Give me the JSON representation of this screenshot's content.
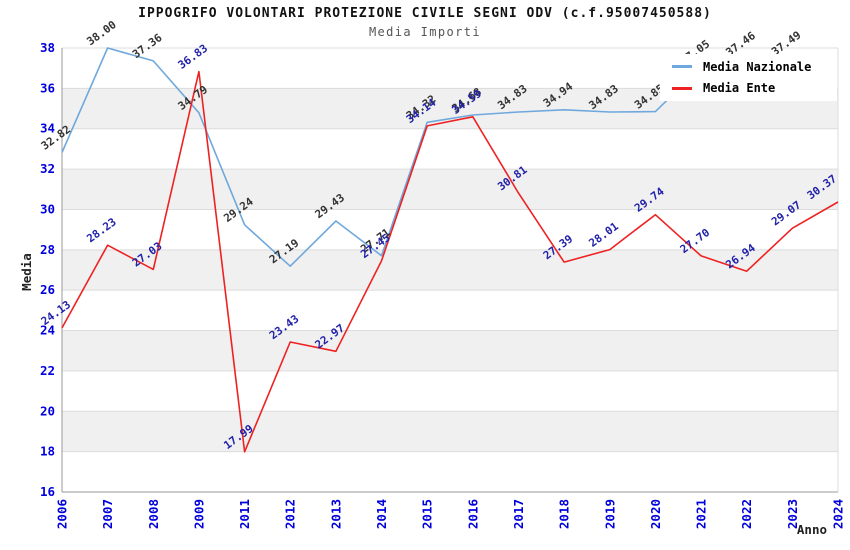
{
  "chart_data": {
    "type": "line",
    "title": "IPPOGRIFO VOLONTARI PROTEZIONE CIVILE SEGNI ODV (c.f.95007450588)",
    "subtitle": "Media Importi",
    "xlabel": "Anno",
    "ylabel": "Media",
    "x": [
      "2006",
      "2007",
      "2008",
      "2009",
      "2011",
      "2012",
      "2013",
      "2014",
      "2015",
      "2016",
      "2017",
      "2018",
      "2019",
      "2020",
      "2021",
      "2022",
      "2023",
      "2024"
    ],
    "series": [
      {
        "name": "Media Nazionale",
        "color": "#6FA8DC",
        "label_color": "#333333",
        "values": [
          32.82,
          38.0,
          37.36,
          34.79,
          29.24,
          27.19,
          29.43,
          27.71,
          34.32,
          34.68,
          34.83,
          34.94,
          34.83,
          34.85,
          37.05,
          37.46,
          37.49,
          null
        ]
      },
      {
        "name": "Media Ente",
        "color": "#EE2222",
        "label_color": "#2222AA",
        "values": [
          24.13,
          28.23,
          27.03,
          36.83,
          17.99,
          23.43,
          22.97,
          27.45,
          34.14,
          34.59,
          30.81,
          27.39,
          28.01,
          29.74,
          27.7,
          26.94,
          29.07,
          30.37
        ]
      }
    ],
    "ylim": [
      16,
      38
    ],
    "ytick_step": 2,
    "yticks": [
      "16",
      "18",
      "20",
      "22",
      "24",
      "26",
      "28",
      "30",
      "32",
      "34",
      "36",
      "38"
    ],
    "grid": true,
    "legend_position": "top-right",
    "colors": {
      "tick_label": "#0000DD",
      "band_gray": "#F0F0F0",
      "grid_line": "#DCDCDC",
      "axis_line": "#9A9A9A",
      "axis_title": "#222222"
    }
  }
}
